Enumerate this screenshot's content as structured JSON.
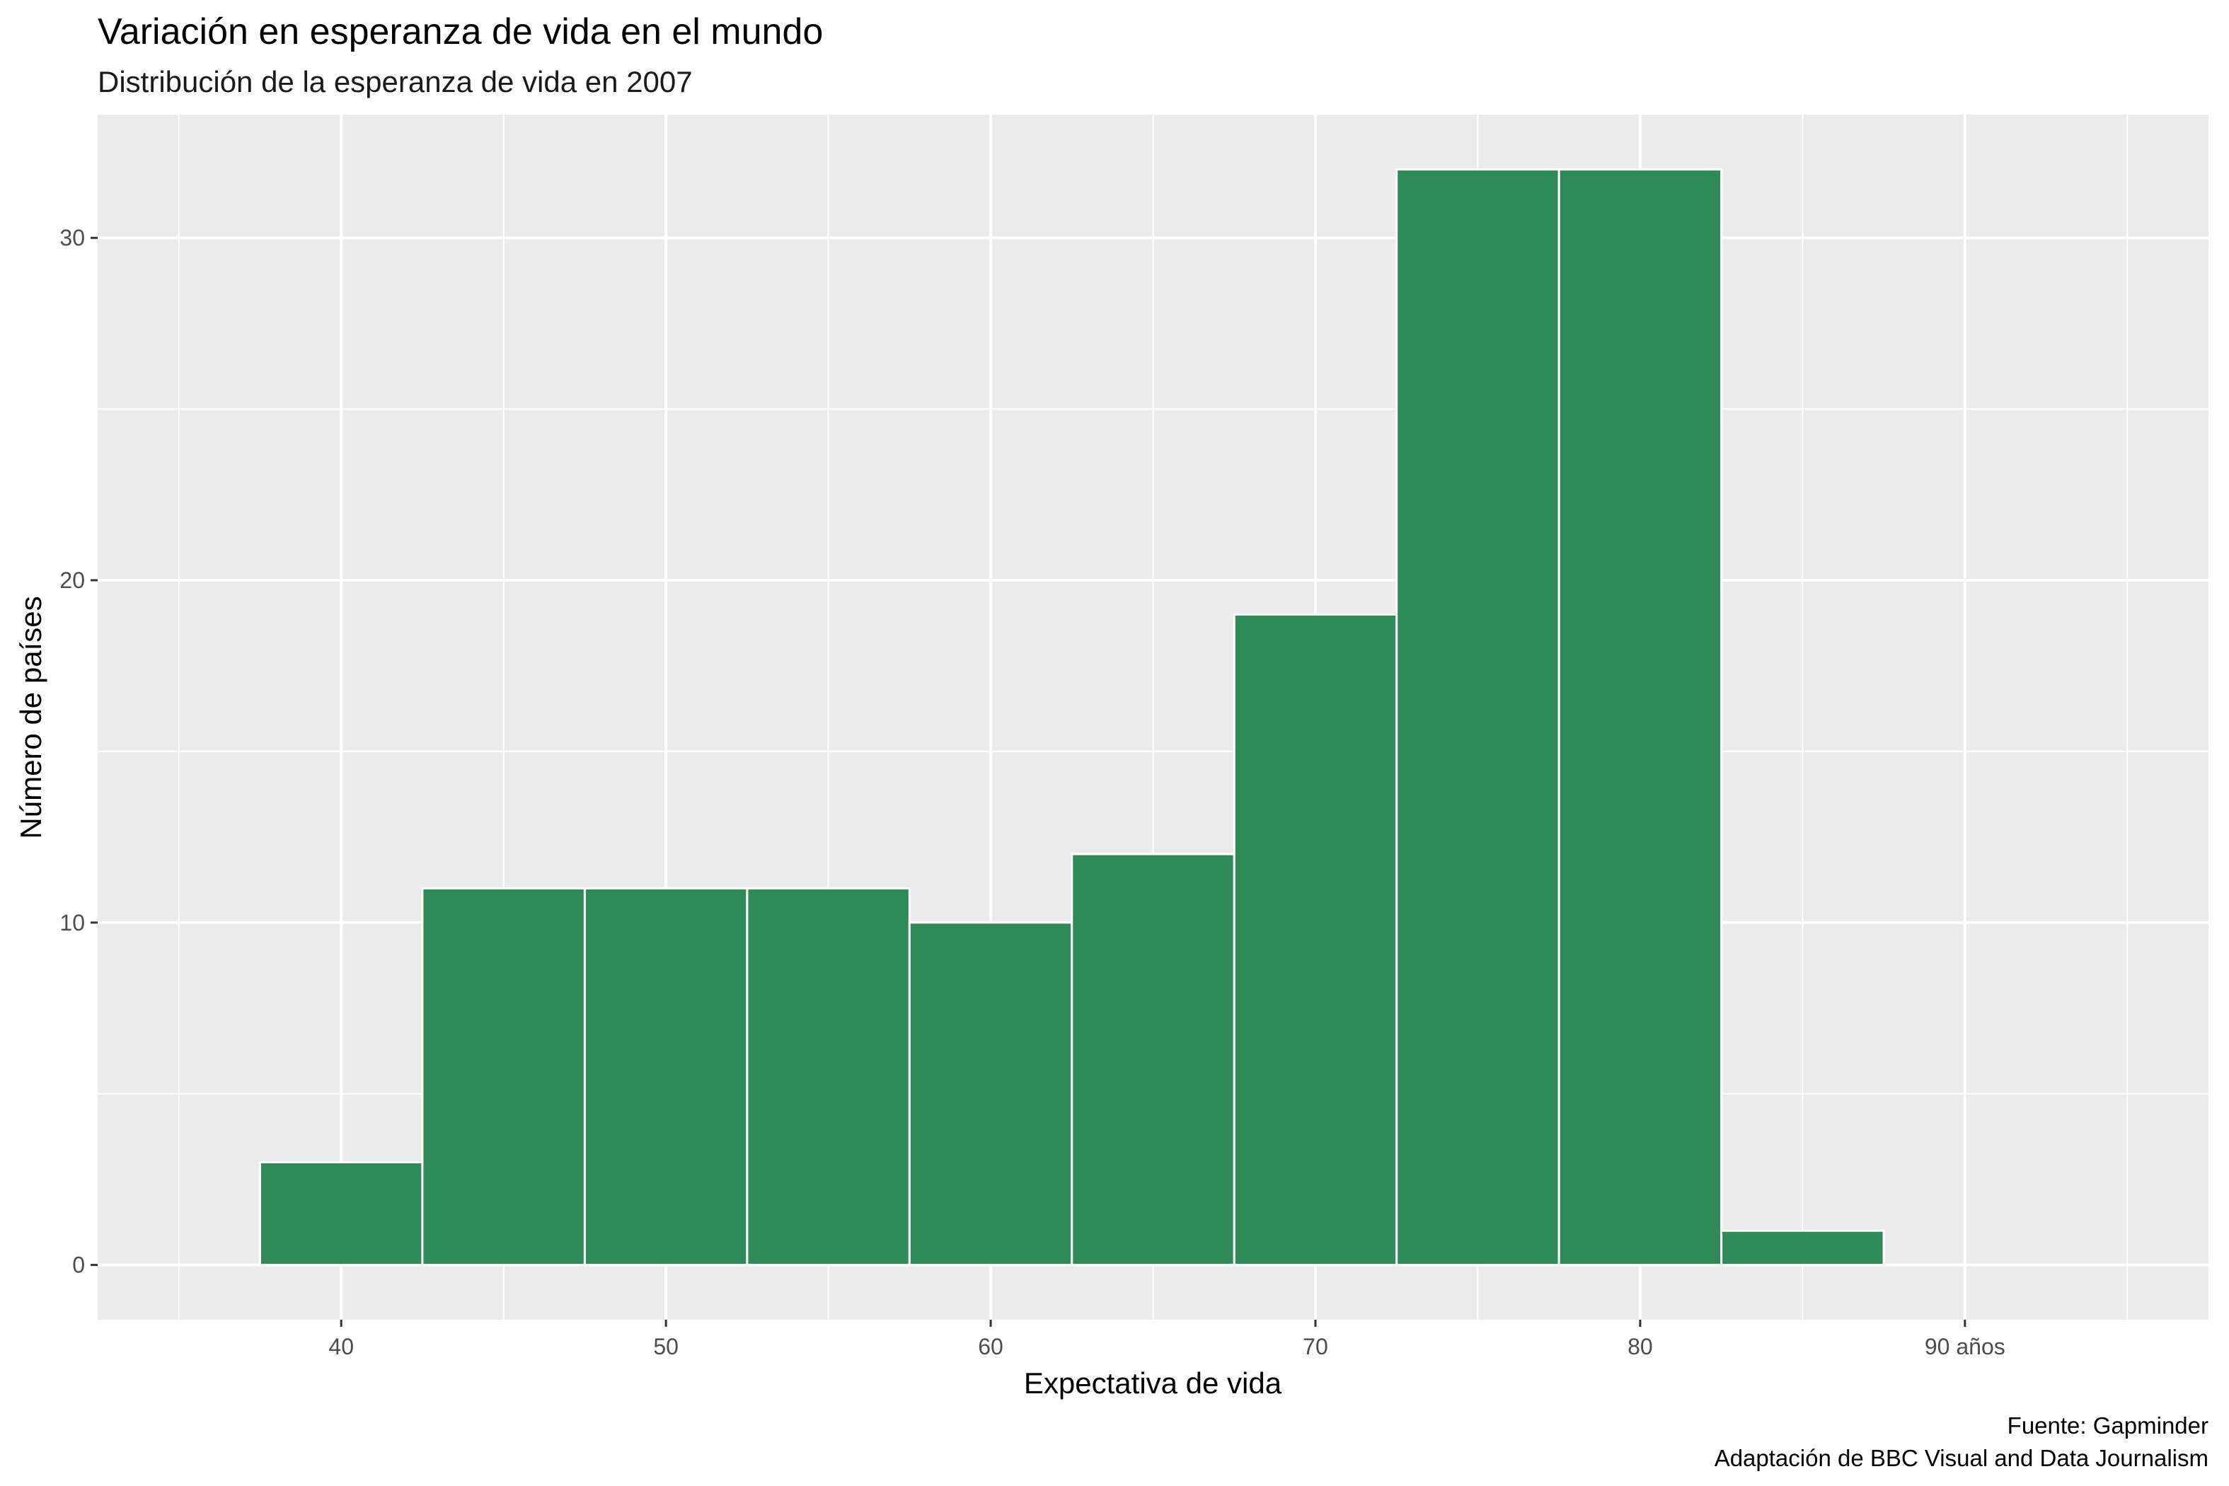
{
  "chart_data": {
    "type": "bar",
    "title": "Variación en esperanza de vida en el mundo",
    "subtitle": "Distribución de la esperanza de vida en 2007",
    "xlabel": "Expectativa de vida",
    "ylabel": "Número de países",
    "x_ticks": [
      {
        "value": 40,
        "label": "40"
      },
      {
        "value": 50,
        "label": "50"
      },
      {
        "value": 60,
        "label": "60"
      },
      {
        "value": 70,
        "label": "70"
      },
      {
        "value": 80,
        "label": "80"
      },
      {
        "value": 90,
        "label": "90 años"
      }
    ],
    "y_ticks": [
      {
        "value": 0,
        "label": "0"
      },
      {
        "value": 10,
        "label": "10"
      },
      {
        "value": 20,
        "label": "20"
      },
      {
        "value": 30,
        "label": "30"
      }
    ],
    "xlim": [
      32.5,
      97.5
    ],
    "ylim": [
      -1.6,
      33.6
    ],
    "bins": [
      {
        "start": 37.5,
        "end": 42.5,
        "count": 3
      },
      {
        "start": 42.5,
        "end": 47.5,
        "count": 11
      },
      {
        "start": 47.5,
        "end": 52.5,
        "count": 11
      },
      {
        "start": 52.5,
        "end": 57.5,
        "count": 11
      },
      {
        "start": 57.5,
        "end": 62.5,
        "count": 10
      },
      {
        "start": 62.5,
        "end": 67.5,
        "count": 12
      },
      {
        "start": 67.5,
        "end": 72.5,
        "count": 19
      },
      {
        "start": 72.5,
        "end": 77.5,
        "count": 32
      },
      {
        "start": 77.5,
        "end": 82.5,
        "count": 32
      },
      {
        "start": 82.5,
        "end": 87.5,
        "count": 1
      }
    ],
    "fill_color": "#2e8b57",
    "outline_color": "#ffffff",
    "panel_background": "#ebebeb",
    "grid": true,
    "legend": "none"
  },
  "caption": {
    "line1": "Fuente: Gapminder",
    "line2": "Adaptación de BBC Visual and Data Journalism"
  }
}
